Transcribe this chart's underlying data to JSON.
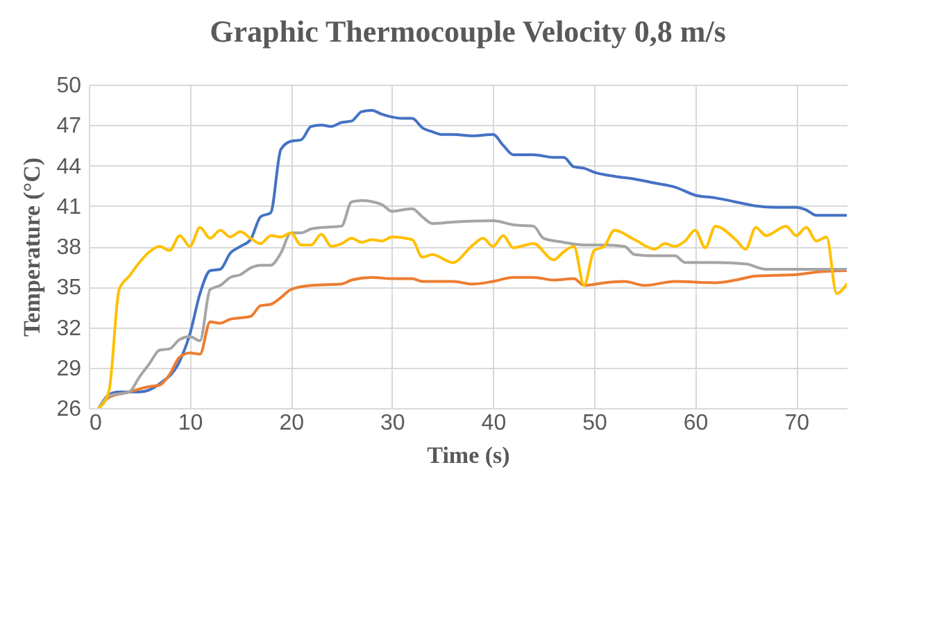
{
  "chart_data": {
    "type": "line",
    "title": "Graphic Thermocouple Velocity 0,8 m/s",
    "xlabel": "Time (s)",
    "ylabel": "Temperature (°C)",
    "xlim": [
      0,
      75
    ],
    "xticks": [
      0,
      10,
      20,
      30,
      40,
      50,
      60,
      70
    ],
    "ylim": [
      26,
      50
    ],
    "yticks": [
      26,
      29,
      32,
      35,
      38,
      41,
      44,
      47,
      50
    ],
    "grid": true,
    "marker": "none",
    "line_style": "solid",
    "series": [
      {
        "color": "#4472c4",
        "x": [
          1,
          2,
          3,
          5,
          7,
          9,
          10,
          11,
          12,
          13,
          14,
          15,
          16,
          17,
          18,
          19,
          20,
          21,
          22,
          23,
          24,
          25,
          26,
          27,
          28,
          29,
          30,
          31,
          32,
          33,
          34,
          35,
          36,
          38,
          40,
          41,
          42,
          44,
          46,
          47,
          48,
          49,
          50,
          52,
          54,
          56,
          58,
          60,
          62,
          64,
          66,
          68,
          70,
          71,
          72,
          75
        ],
        "values": [
          26,
          27,
          27.2,
          27.2,
          27.8,
          29.5,
          31.5,
          34.5,
          36.2,
          36.3,
          37.5,
          38,
          38.5,
          40.2,
          40.5,
          45.2,
          45.8,
          45.9,
          46.9,
          47,
          46.9,
          47.2,
          47.3,
          48,
          48.1,
          47.8,
          47.6,
          47.5,
          47.5,
          46.8,
          46.5,
          46.3,
          46.3,
          46.2,
          46.3,
          45.5,
          44.8,
          44.8,
          44.6,
          44.6,
          43.9,
          43.8,
          43.5,
          43.2,
          43,
          42.7,
          42.4,
          41.8,
          41.6,
          41.3,
          41,
          40.9,
          40.9,
          40.7,
          40.3,
          40.3
        ]
      },
      {
        "color": "#ed7d31",
        "x": [
          1,
          2,
          4,
          6,
          7,
          8,
          9,
          10,
          11,
          12,
          13,
          14,
          15,
          16,
          17,
          18,
          19,
          20,
          22,
          25,
          26,
          28,
          30,
          32,
          33,
          36,
          38,
          40,
          42,
          44,
          46,
          48,
          49,
          51,
          53,
          55,
          58,
          62,
          64,
          66,
          70,
          72,
          75
        ],
        "values": [
          26,
          26.8,
          27.2,
          27.6,
          27.7,
          28.5,
          29.8,
          30.1,
          30,
          32.4,
          32.3,
          32.6,
          32.7,
          32.8,
          33.6,
          33.7,
          34.2,
          34.8,
          35.1,
          35.2,
          35.5,
          35.7,
          35.6,
          35.6,
          35.4,
          35.4,
          35.2,
          35.4,
          35.7,
          35.7,
          35.5,
          35.6,
          35.1,
          35.3,
          35.4,
          35.1,
          35.4,
          35.3,
          35.5,
          35.8,
          35.9,
          36.1,
          36.2
        ]
      },
      {
        "color": "#a5a5a5",
        "x": [
          1,
          2,
          4,
          5,
          6,
          7,
          8,
          9,
          10,
          11,
          12,
          13,
          14,
          15,
          16,
          17,
          18,
          19,
          20,
          21,
          22,
          23,
          25,
          26,
          27,
          29,
          30,
          32,
          33,
          34,
          36,
          40,
          42,
          44,
          45,
          47,
          49,
          51,
          53,
          54,
          56,
          58,
          59,
          62,
          65,
          67,
          70,
          75
        ],
        "values": [
          26,
          26.9,
          27.2,
          28.3,
          29.3,
          30.3,
          30.4,
          31.1,
          31.3,
          31,
          34.8,
          35.1,
          35.7,
          35.9,
          36.4,
          36.6,
          36.6,
          37.5,
          39,
          39,
          39.3,
          39.4,
          39.5,
          41.3,
          41.4,
          41.1,
          40.6,
          40.8,
          40.2,
          39.7,
          39.8,
          39.9,
          39.6,
          39.5,
          38.6,
          38.3,
          38.1,
          38.1,
          38,
          37.4,
          37.3,
          37.3,
          36.8,
          36.8,
          36.7,
          36.3,
          36.3,
          36.3
        ]
      },
      {
        "color": "#ffc000",
        "x": [
          1,
          2,
          3,
          4,
          5,
          6,
          7,
          8,
          9,
          10,
          11,
          12,
          13,
          14,
          15,
          16,
          17,
          18,
          19,
          20,
          21,
          22,
          23,
          24,
          25,
          26,
          27,
          28,
          29,
          30,
          32,
          33,
          34,
          36,
          38,
          39,
          40,
          41,
          42,
          44,
          46,
          47,
          48,
          49,
          50,
          51,
          52,
          54,
          56,
          57,
          58,
          59,
          60,
          61,
          62,
          64,
          65,
          66,
          67,
          69,
          70,
          71,
          72,
          73,
          74,
          75
        ],
        "values": [
          26,
          27.3,
          34.8,
          35.8,
          36.8,
          37.6,
          38,
          37.7,
          38.8,
          38,
          39.4,
          38.6,
          39.2,
          38.7,
          39.1,
          38.6,
          38.2,
          38.8,
          38.7,
          39,
          38.1,
          38.1,
          38.9,
          38,
          38.2,
          38.6,
          38.3,
          38.5,
          38.4,
          38.7,
          38.5,
          37.2,
          37.4,
          36.8,
          38.1,
          38.6,
          38,
          38.8,
          37.9,
          38.2,
          37,
          37.6,
          38,
          35.1,
          37.7,
          38,
          39.2,
          38.5,
          37.8,
          38.2,
          38,
          38.4,
          39.2,
          37.9,
          39.5,
          38.5,
          37.8,
          39.4,
          38.8,
          39.5,
          38.8,
          39.4,
          38.4,
          38.7,
          34.5,
          35.2
        ]
      }
    ]
  }
}
